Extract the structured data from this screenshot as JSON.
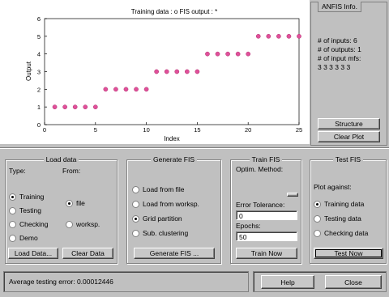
{
  "plot": {
    "title": "Training data : o   FIS output : *",
    "xlabel": "Index",
    "ylabel": "Output"
  },
  "chart_data": {
    "type": "scatter",
    "title": "Training data : o   FIS output : *",
    "xlabel": "Index",
    "ylabel": "Output",
    "xlim": [
      0,
      25
    ],
    "ylim": [
      0,
      6
    ],
    "xticks": [
      0,
      5,
      10,
      15,
      20,
      25
    ],
    "yticks": [
      0,
      1,
      2,
      3,
      4,
      5,
      6
    ],
    "series": [
      {
        "x": [
          1,
          2,
          3,
          4,
          5,
          6,
          7,
          8,
          9,
          10,
          11,
          12,
          13,
          14,
          15,
          16,
          17,
          18,
          19,
          20,
          21,
          22,
          23,
          24,
          25
        ],
        "values": [
          1,
          1,
          1,
          1,
          1,
          2,
          2,
          2,
          2,
          2,
          3,
          3,
          3,
          3,
          3,
          4,
          4,
          4,
          4,
          4,
          5,
          5,
          5,
          5,
          5
        ]
      }
    ],
    "marker_color": "#e0509a"
  },
  "anfis_info": {
    "title": "ANFIS Info.",
    "inputs": "# of inputs: 6",
    "outputs": "# of outputs: 1",
    "mfs_label": "# of input mfs:",
    "mfs_values": "3 3 3 3 3 3",
    "structure_label": "Structure",
    "clear_plot_label": "Clear Plot"
  },
  "load_data": {
    "title": "Load data",
    "type_label": "Type:",
    "from_label": "From:",
    "types": [
      "Training",
      "Testing",
      "Checking",
      "Demo"
    ],
    "selected_type": "Training",
    "sources": [
      "file",
      "worksp."
    ],
    "selected_source": "file",
    "load_button": "Load Data...",
    "clear_button": "Clear Data"
  },
  "generate_fis": {
    "title": "Generate FIS",
    "options": [
      "Load from file",
      "Load from worksp.",
      "Grid partition",
      "Sub. clustering"
    ],
    "selected": "Grid partition",
    "button": "Generate FIS ..."
  },
  "train_fis": {
    "title": "Train FIS",
    "method_label": "Optim. Method:",
    "error_tol_label": "Error Tolerance:",
    "error_tol_value": "0",
    "epochs_label": "Epochs:",
    "epochs_value": "50",
    "button": "Train Now"
  },
  "test_fis": {
    "title": "Test FIS",
    "plot_against_label": "Plot against:",
    "options": [
      "Training data",
      "Testing data",
      "Checking data"
    ],
    "selected": "Training data",
    "button": "Test Now"
  },
  "status": {
    "text": "Average testing error: 0.00012446"
  },
  "footer": {
    "help": "Help",
    "close": "Close"
  },
  "colors": {
    "background": "#c0c0c0",
    "plot_bg": "#ffffff",
    "marker": "#e0509a"
  }
}
